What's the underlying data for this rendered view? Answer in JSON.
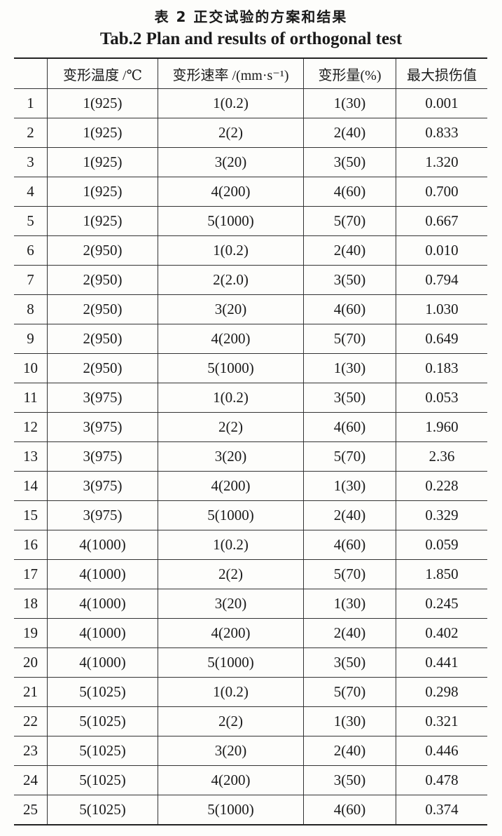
{
  "caption_cn": "表 2  正交试验的方案和结果",
  "caption_en": "Tab.2  Plan and results of orthogonal test",
  "headers": [
    "",
    "变形温度 /℃",
    "变形速率 /(mm·s⁻¹)",
    "变形量(%)",
    "最大损伤值"
  ],
  "rows": [
    [
      "1",
      "1(925)",
      "1(0.2)",
      "1(30)",
      "0.001"
    ],
    [
      "2",
      "1(925)",
      "2(2)",
      "2(40)",
      "0.833"
    ],
    [
      "3",
      "1(925)",
      "3(20)",
      "3(50)",
      "1.320"
    ],
    [
      "4",
      "1(925)",
      "4(200)",
      "4(60)",
      "0.700"
    ],
    [
      "5",
      "1(925)",
      "5(1000)",
      "5(70)",
      "0.667"
    ],
    [
      "6",
      "2(950)",
      "1(0.2)",
      "2(40)",
      "0.010"
    ],
    [
      "7",
      "2(950)",
      "2(2.0)",
      "3(50)",
      "0.794"
    ],
    [
      "8",
      "2(950)",
      "3(20)",
      "4(60)",
      "1.030"
    ],
    [
      "9",
      "2(950)",
      "4(200)",
      "5(70)",
      "0.649"
    ],
    [
      "10",
      "2(950)",
      "5(1000)",
      "1(30)",
      "0.183"
    ],
    [
      "11",
      "3(975)",
      "1(0.2)",
      "3(50)",
      "0.053"
    ],
    [
      "12",
      "3(975)",
      "2(2)",
      "4(60)",
      "1.960"
    ],
    [
      "13",
      "3(975)",
      "3(20)",
      "5(70)",
      "2.36"
    ],
    [
      "14",
      "3(975)",
      "4(200)",
      "1(30)",
      "0.228"
    ],
    [
      "15",
      "3(975)",
      "5(1000)",
      "2(40)",
      "0.329"
    ],
    [
      "16",
      "4(1000)",
      "1(0.2)",
      "4(60)",
      "0.059"
    ],
    [
      "17",
      "4(1000)",
      "2(2)",
      "5(70)",
      "1.850"
    ],
    [
      "18",
      "4(1000)",
      "3(20)",
      "1(30)",
      "0.245"
    ],
    [
      "19",
      "4(1000)",
      "4(200)",
      "2(40)",
      "0.402"
    ],
    [
      "20",
      "4(1000)",
      "5(1000)",
      "3(50)",
      "0.441"
    ],
    [
      "21",
      "5(1025)",
      "1(0.2)",
      "5(70)",
      "0.298"
    ],
    [
      "22",
      "5(1025)",
      "2(2)",
      "1(30)",
      "0.321"
    ],
    [
      "23",
      "5(1025)",
      "3(20)",
      "2(40)",
      "0.446"
    ],
    [
      "24",
      "5(1025)",
      "4(200)",
      "3(50)",
      "0.478"
    ],
    [
      "25",
      "5(1025)",
      "5(1000)",
      "4(60)",
      "0.374"
    ]
  ]
}
